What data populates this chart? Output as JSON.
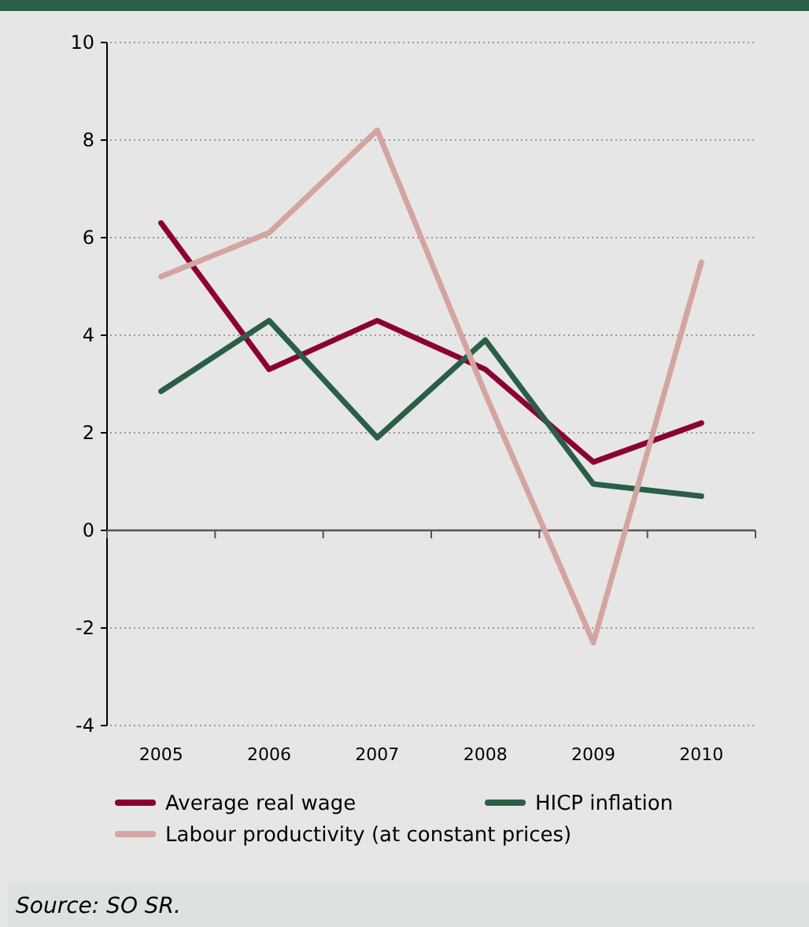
{
  "chart_data": {
    "type": "line",
    "categories": [
      "2005",
      "2006",
      "2007",
      "2008",
      "2009",
      "2010"
    ],
    "series": [
      {
        "name": "Average real wage",
        "color": "#8b0034",
        "values": [
          6.3,
          3.3,
          4.3,
          3.3,
          1.4,
          2.2
        ]
      },
      {
        "name": "HICP inflation",
        "color": "#2a5f46",
        "values": [
          2.85,
          4.3,
          1.9,
          3.9,
          0.95,
          0.7
        ]
      },
      {
        "name": "Labour productivity (at constant prices)",
        "color": "#d4a5a0",
        "values": [
          5.2,
          6.1,
          8.2,
          2.8,
          -2.3,
          5.5
        ]
      }
    ],
    "ylim": [
      -4,
      10
    ],
    "yticks": [
      -4,
      -2,
      0,
      2,
      4,
      6,
      8,
      10
    ],
    "grid": "y",
    "legend": "bottom",
    "annotations": [
      "Source: SO SR."
    ]
  }
}
